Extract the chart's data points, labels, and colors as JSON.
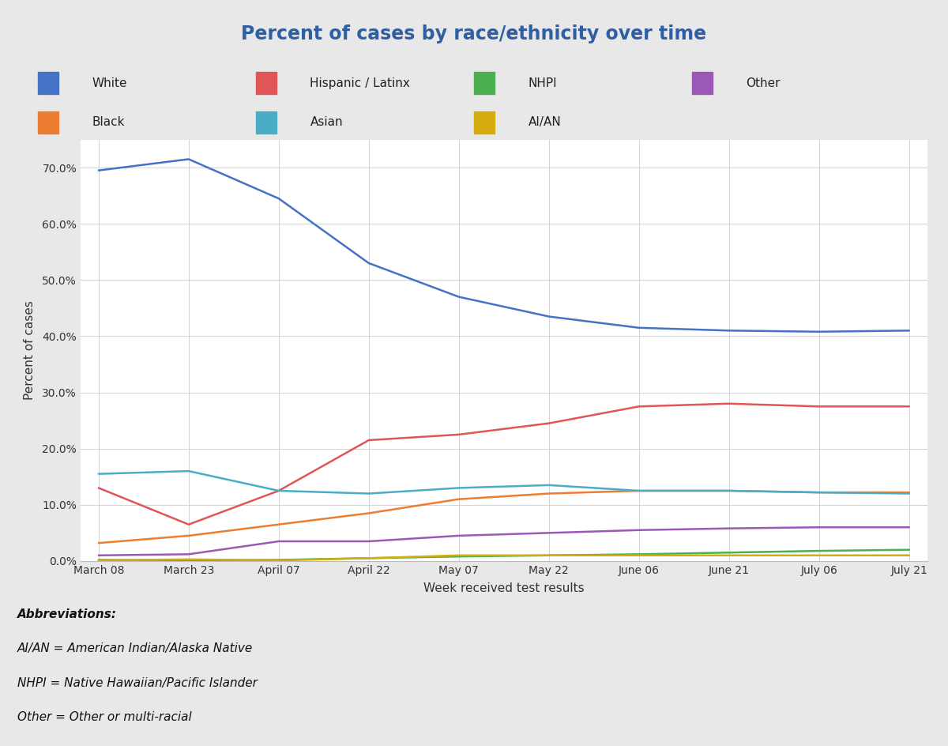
{
  "title": "Percent of cases by race/ethnicity over time",
  "title_color": "#2E5FA3",
  "xlabel": "Week received test results",
  "ylabel": "Percent of cases",
  "background_color": "#E8E8E8",
  "plot_bg_color": "#FFFFFF",
  "footer_bg_color": "#C8E6EC",
  "x_labels": [
    "March 08",
    "March 23",
    "April 07",
    "April 22",
    "May 07",
    "May 22",
    "June 06",
    "June 21",
    "July 06",
    "July 21"
  ],
  "series": {
    "White": {
      "color": "#4472C4",
      "values": [
        69.5,
        71.5,
        64.5,
        53.0,
        47.0,
        43.5,
        41.5,
        41.0,
        40.8,
        41.0
      ]
    },
    "Black": {
      "color": "#ED7D31",
      "values": [
        3.2,
        4.5,
        6.5,
        8.5,
        11.0,
        12.0,
        12.5,
        12.5,
        12.2,
        12.2
      ]
    },
    "Hispanic / Latinx": {
      "color": "#E05555",
      "values": [
        13.0,
        6.5,
        12.5,
        21.5,
        22.5,
        24.5,
        27.5,
        28.0,
        27.5,
        27.5
      ]
    },
    "Asian": {
      "color": "#4BACC6",
      "values": [
        15.5,
        16.0,
        12.5,
        12.0,
        13.0,
        13.5,
        12.5,
        12.5,
        12.2,
        12.0
      ]
    },
    "NHPI": {
      "color": "#4CAF50",
      "values": [
        0.2,
        0.1,
        0.2,
        0.5,
        0.8,
        1.0,
        1.2,
        1.5,
        1.8,
        2.0
      ]
    },
    "AI/AN": {
      "color": "#D4AC0D",
      "values": [
        0.1,
        0.3,
        0.1,
        0.5,
        1.0,
        1.0,
        1.0,
        1.0,
        1.0,
        1.0
      ]
    },
    "Other": {
      "color": "#9B59B6",
      "values": [
        1.0,
        1.2,
        3.5,
        3.5,
        4.5,
        5.0,
        5.5,
        5.8,
        6.0,
        6.0
      ]
    }
  },
  "row1": [
    "White",
    "Hispanic / Latinx",
    "NHPI",
    "Other"
  ],
  "row2": [
    "Black",
    "Asian",
    "AI/AN"
  ],
  "ylim": [
    0,
    75
  ],
  "yticks": [
    0,
    10,
    20,
    30,
    40,
    50,
    60,
    70
  ],
  "ytick_labels": [
    "0.0%",
    "10.0%",
    "20.0%",
    "30.0%",
    "40.0%",
    "50.0%",
    "60.0%",
    "70.0%"
  ],
  "footer_lines": [
    [
      "Abbreviations:",
      true,
      true
    ],
    [
      "AI/AN = American Indian/Alaska Native",
      false,
      true
    ],
    [
      "NHPI = Native Hawaiian/Pacific Islander",
      false,
      true
    ],
    [
      "Other = Other or multi-racial",
      false,
      true
    ]
  ]
}
